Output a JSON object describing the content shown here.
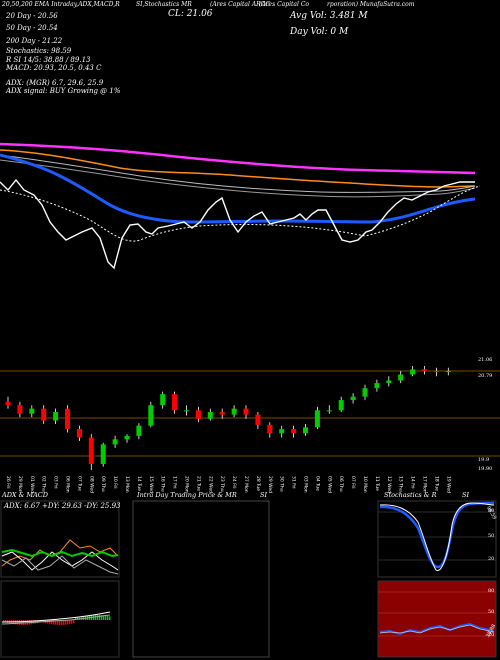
{
  "header": {
    "line1_left": "20,50,200 EMA Intraday,ADX,MACD,R",
    "line1_mid": "SI,Stochastics MR",
    "line1_mid2": "(Ares Capital ARCC",
    "line1_right": "(Ares Capital Co",
    "line1_right2": "rporation) MunafaSutra.com",
    "cl": "CL: 21.06",
    "avg_vol": "Avg Vol: 3.481 M",
    "day_vol": "Day Vol: 0   M",
    "ema20": "20 Day - 20.56",
    "ema50": "50 Day - 20.54",
    "ema200": "200 Day - 21.22",
    "stoch": "Stochastics: 98.59",
    "rsi": "R          SI 14/5: 38.88 / 89.13",
    "macd": "MACD: 20.93, 20.5, 0.43 C",
    "adx": "ADX:                          (MGR) 6.7, 29.6, 25.9",
    "adx_signal": "ADX signal:                               BUY Growing @ 1%"
  },
  "colors": {
    "ema20": "#ffffff",
    "ema50": "#ff8c1a",
    "ema200": "#ff33ff",
    "ema_blue": "#1e5bff",
    "up": "#00cc00",
    "down": "#ff0000",
    "grid": "#7a4a00"
  },
  "chart_data": [
    {
      "type": "line",
      "name": "ema-panel",
      "series": [
        {
          "name": "20 Day",
          "values": [
            20.52,
            20.51,
            20.49,
            20.47,
            20.46,
            20.44,
            20.43,
            20.42,
            20.41,
            20.4,
            20.4,
            20.4,
            20.4,
            20.4,
            20.41,
            20.42,
            20.43,
            20.45,
            20.47,
            20.5,
            20.53,
            20.56
          ]
        },
        {
          "name": "50 Day",
          "values": [
            20.95,
            20.93,
            20.91,
            20.88,
            20.85,
            20.82,
            20.78,
            20.74,
            20.7,
            20.66,
            20.63,
            20.61,
            20.59,
            20.57,
            20.56,
            20.55,
            20.54,
            20.54,
            20.54,
            20.54,
            20.54,
            20.54
          ]
        },
        {
          "name": "200 Day",
          "values": [
            21.52,
            21.5,
            21.47,
            21.44,
            21.41,
            21.38,
            21.35,
            21.32,
            21.3,
            21.28,
            21.26,
            21.25,
            21.24,
            21.23,
            21.23,
            21.22,
            21.22,
            21.22,
            21.22,
            21.22,
            21.22,
            21.22
          ]
        }
      ]
    },
    {
      "type": "bar",
      "name": "candles",
      "categories": [
        "26 Fri",
        "29 Mon",
        "01 Wed",
        "02 Thu",
        "03 Fri",
        "06 Mon",
        "07 Tue",
        "08 Wed",
        "09 Thu",
        "10 Fri",
        "13 Mon",
        "14 Tue",
        "15 Wed",
        "16 Thu",
        "17 Fri",
        "20 Mon",
        "21 Tue",
        "22 Wed",
        "23 Thu",
        "24 Fri",
        "27 Mon",
        "28 Tue",
        "29 Wed",
        "30 Thu",
        "31 Fri",
        "03 Mon",
        "04 Tue",
        "05 Wed",
        "06 Thu",
        "07 Fri",
        "10 Mon",
        "11 Tue",
        "12 Wed",
        "13 Thu",
        "14 Fri",
        "17 Mon",
        "18 Tue",
        "19 Wed"
      ],
      "open": [
        20.7,
        20.66,
        20.56,
        20.62,
        20.48,
        20.62,
        20.38,
        20.28,
        19.97,
        20.2,
        20.26,
        20.3,
        20.42,
        20.66,
        20.79,
        20.6,
        20.6,
        20.5,
        20.58,
        20.55,
        20.62,
        20.55,
        20.43,
        20.33,
        20.38,
        20.33,
        20.4,
        20.6,
        20.6,
        20.72,
        20.76,
        20.86,
        20.92,
        20.95,
        21.02,
        21.08,
        21.06,
        21.05
      ],
      "close": [
        20.66,
        20.56,
        20.62,
        20.48,
        20.58,
        20.38,
        20.28,
        19.97,
        20.2,
        20.26,
        20.3,
        20.42,
        20.66,
        20.79,
        20.6,
        20.6,
        20.5,
        20.58,
        20.55,
        20.62,
        20.55,
        20.43,
        20.33,
        20.38,
        20.33,
        20.4,
        20.6,
        20.6,
        20.72,
        20.76,
        20.86,
        20.92,
        20.95,
        21.02,
        21.08,
        21.06,
        21.05,
        21.06
      ],
      "high": [
        20.76,
        20.7,
        20.66,
        20.66,
        20.62,
        20.66,
        20.42,
        20.32,
        20.22,
        20.3,
        20.32,
        20.45,
        20.7,
        20.82,
        20.82,
        20.66,
        20.64,
        20.62,
        20.62,
        20.66,
        20.66,
        20.58,
        20.46,
        20.42,
        20.42,
        20.44,
        20.64,
        20.66,
        20.76,
        20.8,
        20.9,
        20.96,
        21.0,
        21.06,
        21.12,
        21.12,
        21.1,
        21.1
      ],
      "low": [
        20.62,
        20.52,
        20.52,
        20.44,
        20.44,
        20.34,
        20.24,
        19.9,
        19.94,
        20.16,
        20.22,
        20.26,
        20.4,
        20.62,
        20.56,
        20.54,
        20.46,
        20.48,
        20.5,
        20.52,
        20.5,
        20.38,
        20.28,
        20.28,
        20.28,
        20.3,
        20.38,
        20.56,
        20.58,
        20.68,
        20.72,
        20.82,
        20.88,
        20.92,
        21.0,
        21.02,
        21.0,
        21.01
      ],
      "right_labels": [
        "21.06",
        "20.79",
        "19.9",
        "19.90"
      ]
    },
    {
      "type": "line",
      "name": "adx-macd",
      "title": "ADX  & MACD",
      "readout": "ADX: 6.67  +DY: 29.63  -DY: 25.93"
    },
    {
      "type": "line",
      "name": "intraday",
      "title": "Intra  Day Trading Price  & MR",
      "title2": "SI"
    },
    {
      "type": "line",
      "name": "stochastics",
      "title": "Stochastics & R",
      "title2": "SI",
      "ticks": [
        "80",
        "50",
        "20"
      ],
      "readout": "98.59",
      "rsi_ticks": [
        "80",
        "50",
        "20"
      ],
      "rsi_readout": "38.88"
    }
  ]
}
